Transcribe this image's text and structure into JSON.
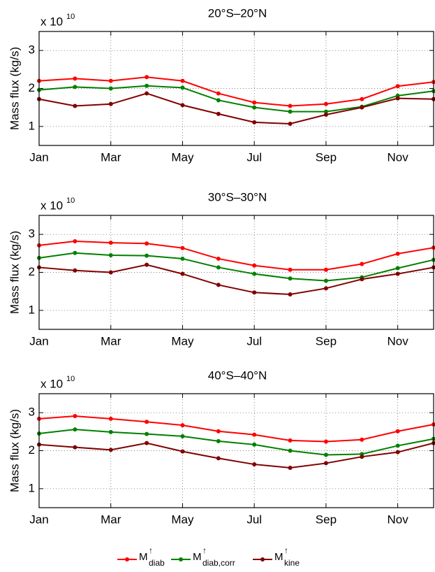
{
  "chart_data": [
    {
      "type": "line",
      "title": "20°S–20°N",
      "ylabel": "Mass flux (kg/s)",
      "multiplier": "x 10",
      "multiplier_exponent": "10",
      "categories": [
        "Jan",
        null,
        "Mar",
        null,
        "May",
        null,
        "Jul",
        null,
        "Sep",
        null,
        "Nov",
        null
      ],
      "ylim": [
        0.5,
        3.5
      ],
      "yticks": [
        1,
        2,
        3
      ],
      "grid": true,
      "series": [
        {
          "color": "#ff0000",
          "values": [
            2.2,
            2.26,
            2.2,
            2.3,
            2.2,
            1.87,
            1.63,
            1.54,
            1.59,
            1.72,
            2.06,
            2.17
          ]
        },
        {
          "color": "#008000",
          "values": [
            1.96,
            2.04,
            2.0,
            2.07,
            2.02,
            1.69,
            1.5,
            1.39,
            1.39,
            1.52,
            1.81,
            1.93
          ]
        },
        {
          "color": "#800000",
          "values": [
            1.72,
            1.54,
            1.59,
            1.87,
            1.56,
            1.33,
            1.11,
            1.07,
            1.31,
            1.5,
            1.74,
            1.72
          ]
        }
      ]
    },
    {
      "type": "line",
      "title": "30°S–30°N",
      "ylabel": "Mass flux (kg/s)",
      "multiplier": "x 10",
      "multiplier_exponent": "10",
      "categories": [
        "Jan",
        null,
        "Mar",
        null,
        "May",
        null,
        "Jul",
        null,
        "Sep",
        null,
        "Nov",
        null
      ],
      "ylim": [
        0.5,
        3.5
      ],
      "yticks": [
        1,
        2,
        3
      ],
      "grid": true,
      "series": [
        {
          "color": "#ff0000",
          "values": [
            2.71,
            2.82,
            2.78,
            2.76,
            2.64,
            2.36,
            2.18,
            2.07,
            2.07,
            2.22,
            2.49,
            2.65
          ]
        },
        {
          "color": "#008000",
          "values": [
            2.38,
            2.51,
            2.45,
            2.44,
            2.36,
            2.13,
            1.96,
            1.84,
            1.78,
            1.87,
            2.11,
            2.33
          ]
        },
        {
          "color": "#800000",
          "values": [
            2.13,
            2.05,
            2.0,
            2.2,
            1.96,
            1.67,
            1.47,
            1.42,
            1.58,
            1.82,
            1.96,
            2.13
          ]
        }
      ]
    },
    {
      "type": "line",
      "title": "40°S–40°N",
      "ylabel": "Mass flux (kg/s)",
      "multiplier": "x 10",
      "multiplier_exponent": "10",
      "categories": [
        "Jan",
        null,
        "Mar",
        null,
        "May",
        null,
        "Jul",
        null,
        "Sep",
        null,
        "Nov",
        null
      ],
      "ylim": [
        0.5,
        3.5
      ],
      "yticks": [
        1,
        2,
        3
      ],
      "grid": true,
      "series": [
        {
          "color": "#ff0000",
          "values": [
            2.84,
            2.91,
            2.84,
            2.76,
            2.67,
            2.51,
            2.42,
            2.27,
            2.24,
            2.29,
            2.51,
            2.69
          ]
        },
        {
          "color": "#008000",
          "values": [
            2.45,
            2.56,
            2.49,
            2.44,
            2.38,
            2.25,
            2.16,
            2.0,
            1.89,
            1.91,
            2.13,
            2.31
          ]
        },
        {
          "color": "#800000",
          "values": [
            2.16,
            2.09,
            2.02,
            2.2,
            1.98,
            1.8,
            1.64,
            1.55,
            1.67,
            1.84,
            1.96,
            2.2
          ]
        }
      ]
    }
  ],
  "legend": {
    "entries": [
      {
        "label": "M",
        "sup": "↑",
        "sub": "diab",
        "color": "#ff0000"
      },
      {
        "label": "M",
        "sup": "↑",
        "sub": "diab,corr",
        "color": "#008000"
      },
      {
        "label": "M",
        "sup": "↑",
        "sub": "kine",
        "color": "#800000"
      }
    ]
  }
}
